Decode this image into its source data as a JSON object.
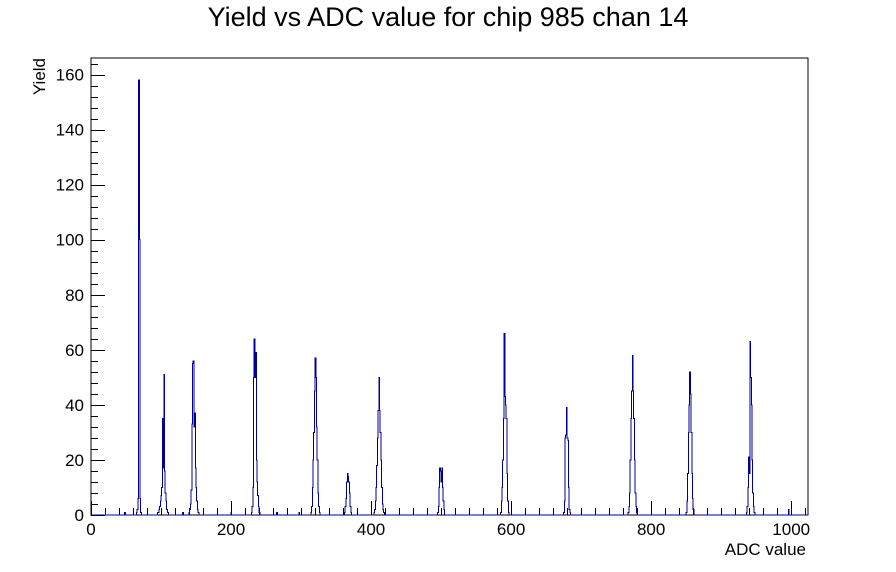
{
  "chart_data": {
    "type": "histogram",
    "title": "Yield vs ADC value for chip 985 chan 14",
    "xlabel": "ADC value",
    "ylabel": "Yield",
    "xlim": [
      0,
      1024
    ],
    "ylim": [
      0,
      166
    ],
    "x_ticks": [
      0,
      200,
      400,
      600,
      800,
      1000
    ],
    "y_ticks": [
      0,
      20,
      40,
      60,
      80,
      100,
      120,
      140,
      160
    ],
    "bin_width": 1,
    "line_color": "#000099",
    "grid": false,
    "bins": [
      [
        48,
        1
      ],
      [
        65,
        1
      ],
      [
        66,
        2
      ],
      [
        67,
        6
      ],
      [
        68,
        158
      ],
      [
        69,
        100
      ],
      [
        70,
        6
      ],
      [
        71,
        1
      ],
      [
        95,
        1
      ],
      [
        96,
        1
      ],
      [
        97,
        2
      ],
      [
        98,
        3
      ],
      [
        99,
        5
      ],
      [
        100,
        7
      ],
      [
        101,
        10
      ],
      [
        102,
        35
      ],
      [
        103,
        17
      ],
      [
        104,
        51
      ],
      [
        105,
        16
      ],
      [
        106,
        8
      ],
      [
        107,
        5
      ],
      [
        108,
        2
      ],
      [
        109,
        1
      ],
      [
        110,
        1
      ],
      [
        131,
        1
      ],
      [
        140,
        1
      ],
      [
        141,
        2
      ],
      [
        142,
        4
      ],
      [
        143,
        9
      ],
      [
        144,
        33
      ],
      [
        145,
        55
      ],
      [
        146,
        56
      ],
      [
        147,
        32
      ],
      [
        148,
        37
      ],
      [
        149,
        17
      ],
      [
        150,
        10
      ],
      [
        151,
        5
      ],
      [
        152,
        2
      ],
      [
        153,
        1
      ],
      [
        200,
        1
      ],
      [
        229,
        1
      ],
      [
        230,
        3
      ],
      [
        231,
        10
      ],
      [
        232,
        50
      ],
      [
        233,
        64
      ],
      [
        234,
        50
      ],
      [
        235,
        59
      ],
      [
        236,
        20
      ],
      [
        237,
        12
      ],
      [
        238,
        7
      ],
      [
        239,
        3
      ],
      [
        240,
        1
      ],
      [
        265,
        1
      ],
      [
        297,
        1
      ],
      [
        314,
        1
      ],
      [
        315,
        3
      ],
      [
        316,
        10
      ],
      [
        317,
        20
      ],
      [
        318,
        30
      ],
      [
        319,
        45
      ],
      [
        320,
        57
      ],
      [
        321,
        50
      ],
      [
        322,
        32
      ],
      [
        323,
        20
      ],
      [
        324,
        8
      ],
      [
        325,
        3
      ],
      [
        326,
        1
      ],
      [
        362,
        1
      ],
      [
        363,
        3
      ],
      [
        364,
        6
      ],
      [
        365,
        12
      ],
      [
        366,
        15
      ],
      [
        367,
        14
      ],
      [
        368,
        12
      ],
      [
        369,
        8
      ],
      [
        370,
        3
      ],
      [
        371,
        1
      ],
      [
        404,
        1
      ],
      [
        405,
        2
      ],
      [
        406,
        5
      ],
      [
        407,
        10
      ],
      [
        408,
        18
      ],
      [
        409,
        28
      ],
      [
        410,
        38
      ],
      [
        411,
        50
      ],
      [
        412,
        38
      ],
      [
        413,
        30
      ],
      [
        414,
        20
      ],
      [
        415,
        10
      ],
      [
        416,
        4
      ],
      [
        417,
        2
      ],
      [
        418,
        1
      ],
      [
        495,
        1
      ],
      [
        496,
        3
      ],
      [
        497,
        10
      ],
      [
        498,
        17
      ],
      [
        499,
        16
      ],
      [
        500,
        12
      ],
      [
        501,
        17
      ],
      [
        502,
        10
      ],
      [
        503,
        5
      ],
      [
        504,
        2
      ],
      [
        585,
        1
      ],
      [
        586,
        5
      ],
      [
        587,
        10
      ],
      [
        588,
        20
      ],
      [
        589,
        35
      ],
      [
        590,
        66
      ],
      [
        591,
        43
      ],
      [
        592,
        40
      ],
      [
        593,
        35
      ],
      [
        594,
        15
      ],
      [
        595,
        5
      ],
      [
        596,
        1
      ],
      [
        675,
        1
      ],
      [
        676,
        5
      ],
      [
        677,
        28
      ],
      [
        678,
        29
      ],
      [
        679,
        39
      ],
      [
        680,
        28
      ],
      [
        681,
        27
      ],
      [
        682,
        10
      ],
      [
        683,
        2
      ],
      [
        684,
        1
      ],
      [
        767,
        1
      ],
      [
        768,
        3
      ],
      [
        769,
        8
      ],
      [
        770,
        20
      ],
      [
        771,
        35
      ],
      [
        772,
        45
      ],
      [
        773,
        58
      ],
      [
        774,
        45
      ],
      [
        775,
        35
      ],
      [
        776,
        20
      ],
      [
        777,
        8
      ],
      [
        778,
        3
      ],
      [
        779,
        1
      ],
      [
        850,
        1
      ],
      [
        851,
        5
      ],
      [
        852,
        15
      ],
      [
        853,
        30
      ],
      [
        854,
        40
      ],
      [
        855,
        52
      ],
      [
        856,
        44
      ],
      [
        857,
        30
      ],
      [
        858,
        15
      ],
      [
        859,
        6
      ],
      [
        860,
        2
      ],
      [
        936,
        1
      ],
      [
        937,
        3
      ],
      [
        938,
        10
      ],
      [
        939,
        21
      ],
      [
        940,
        15
      ],
      [
        941,
        63
      ],
      [
        942,
        50
      ],
      [
        943,
        40
      ],
      [
        944,
        20
      ],
      [
        945,
        8
      ],
      [
        946,
        3
      ],
      [
        947,
        1
      ],
      [
        996,
        2
      ]
    ]
  }
}
